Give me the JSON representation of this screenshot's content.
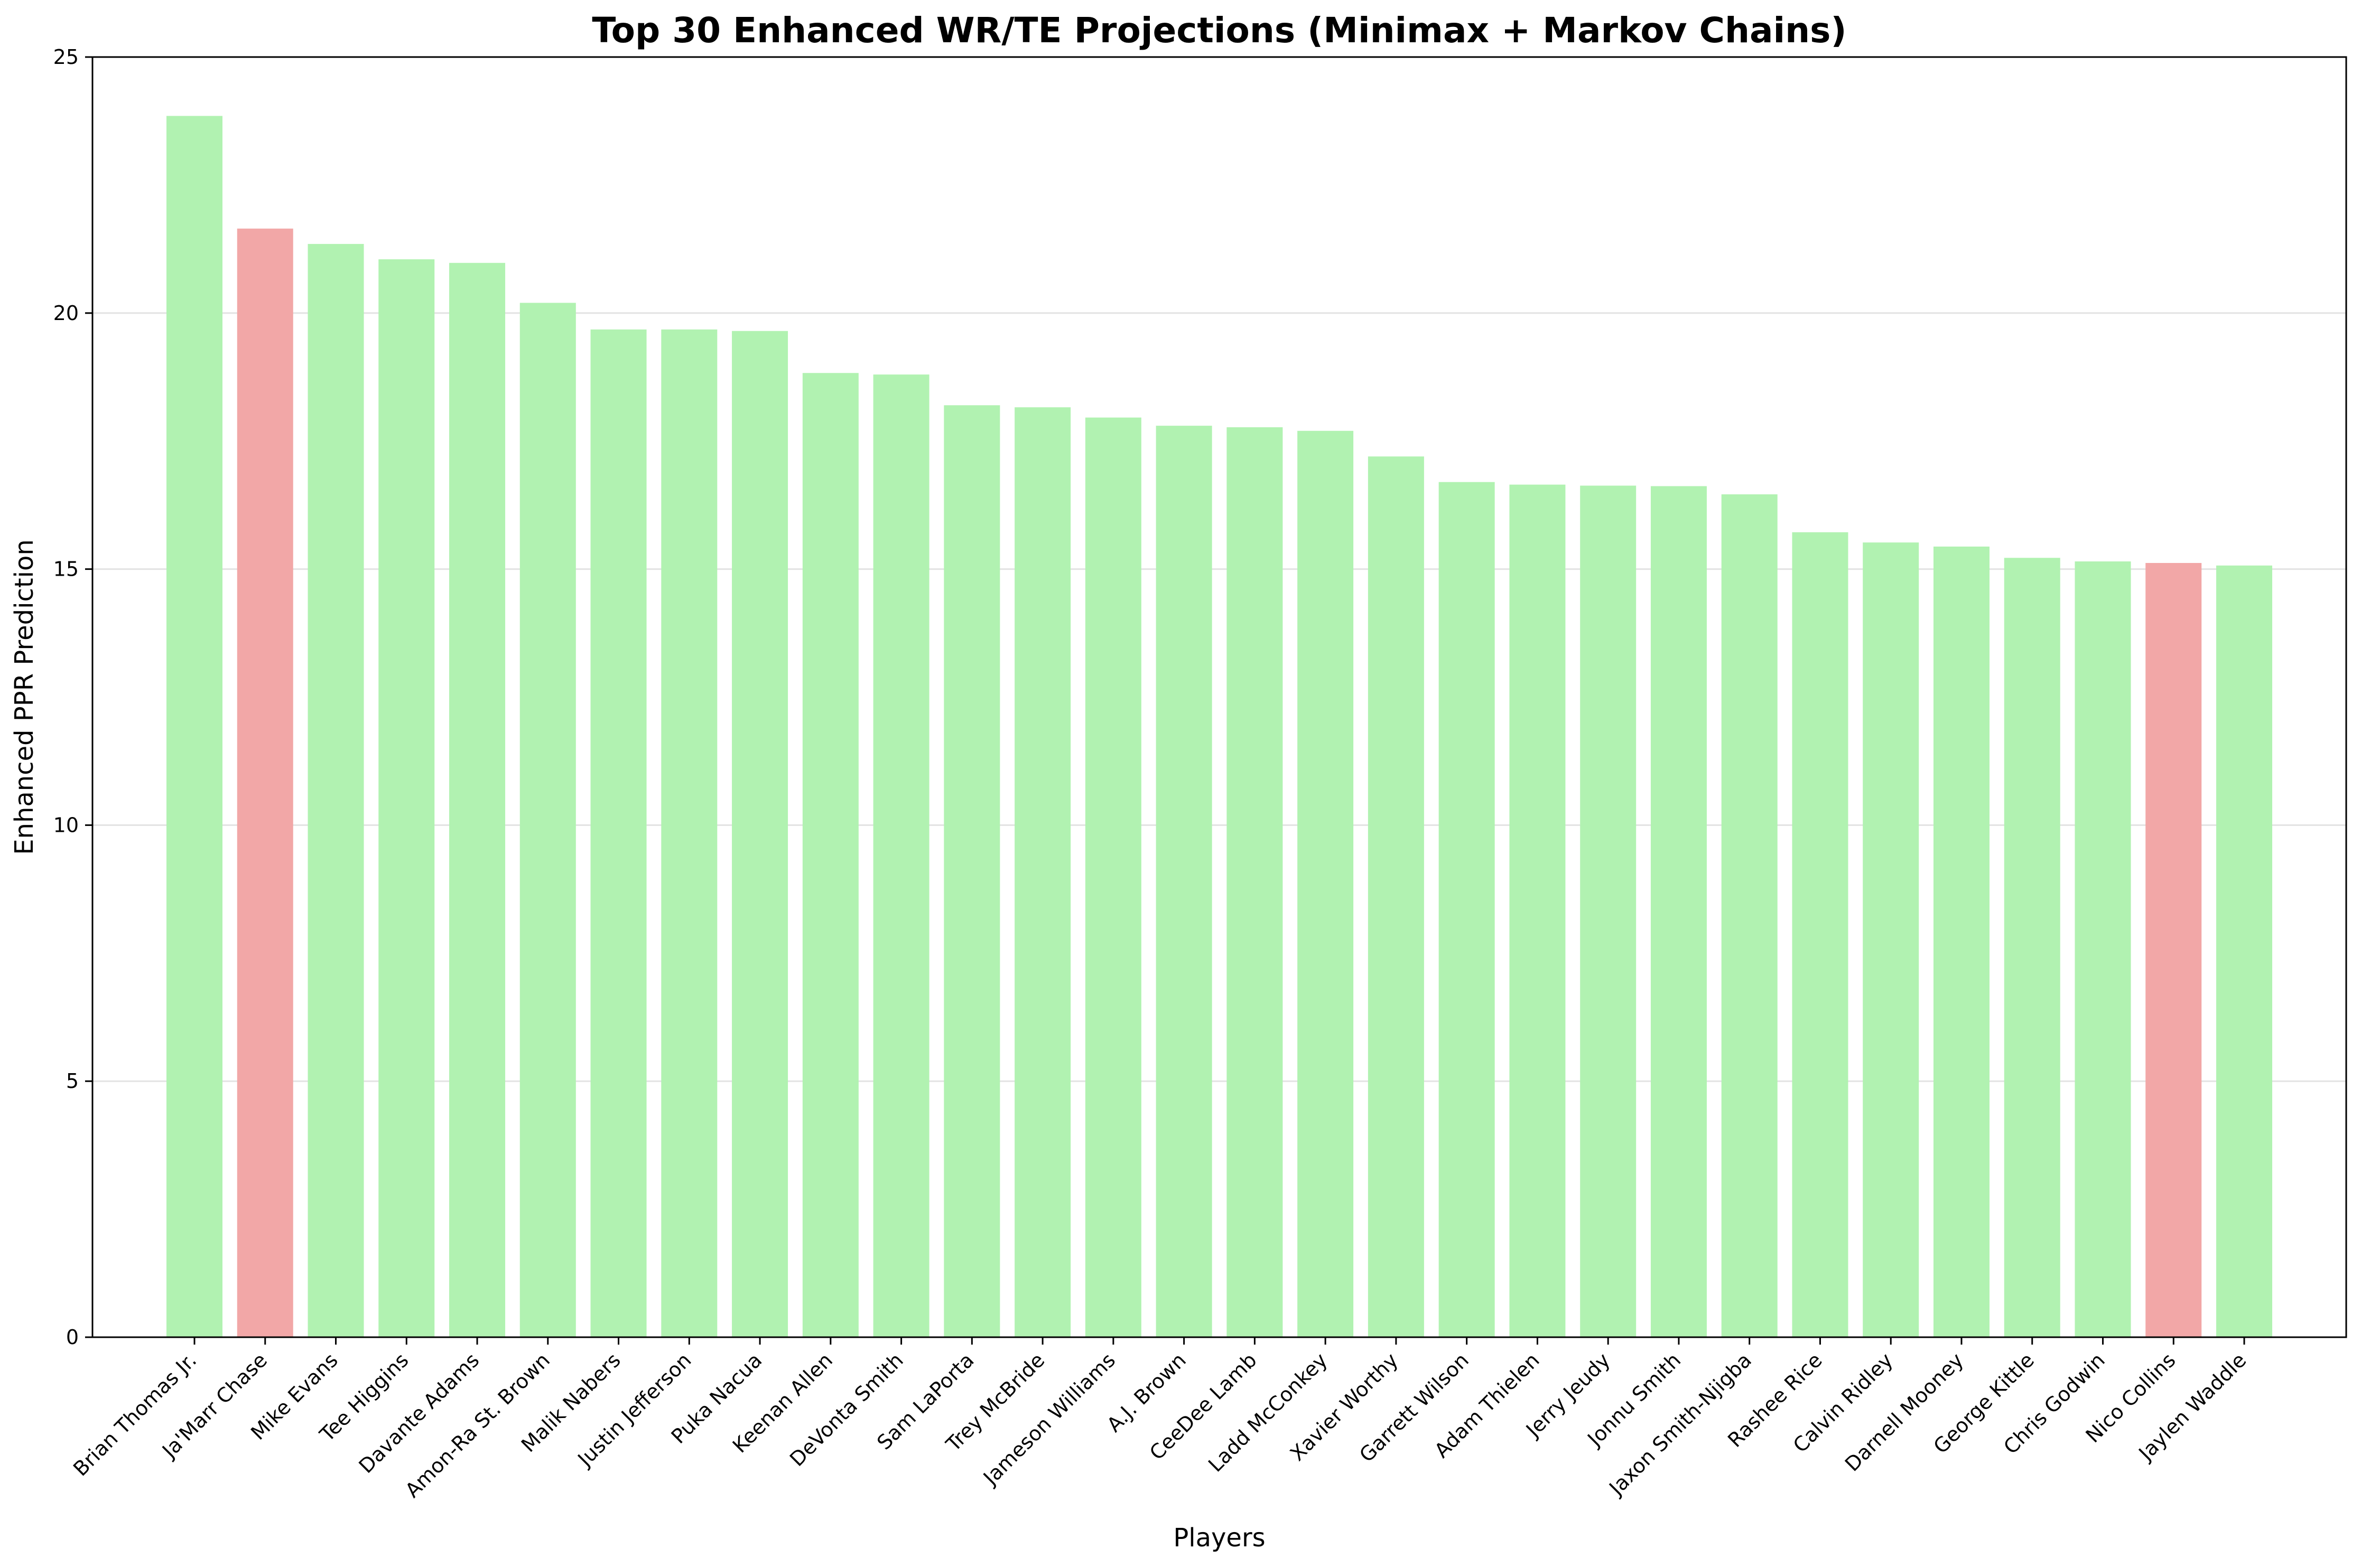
{
  "chart_data": {
    "type": "bar",
    "title": "Top 30 Enhanced WR/TE Projections (Minimax + Markov Chains)",
    "xlabel": "Players",
    "ylabel": "Enhanced PPR Prediction",
    "ylim": [
      0,
      25
    ],
    "yticks": [
      0,
      5,
      10,
      15,
      20,
      25
    ],
    "grid": "horizontal",
    "colors": {
      "default": "#b1f2b1",
      "highlight": "#f2a7a7"
    },
    "categories": [
      "Brian Thomas Jr.",
      "Ja'Marr Chase",
      "Mike Evans",
      "Tee Higgins",
      "Davante Adams",
      "Amon-Ra St. Brown",
      "Malik Nabers",
      "Justin Jefferson",
      "Puka Nacua",
      "Keenan Allen",
      "DeVonta Smith",
      "Sam LaPorta",
      "Trey McBride",
      "Jameson Williams",
      "A.J. Brown",
      "CeeDee Lamb",
      "Ladd McConkey",
      "Xavier Worthy",
      "Garrett Wilson",
      "Adam Thielen",
      "Jerry Jeudy",
      "Jonnu Smith",
      "Jaxon Smith-Njigba",
      "Rashee Rice",
      "Calvin Ridley",
      "Darnell Mooney",
      "George Kittle",
      "Chris Godwin",
      "Nico Collins",
      "Jaylen Waddle"
    ],
    "values": [
      23.85,
      21.65,
      21.35,
      21.05,
      20.98,
      20.2,
      19.68,
      19.68,
      19.65,
      18.83,
      18.8,
      18.2,
      18.16,
      17.96,
      17.8,
      17.77,
      17.7,
      17.2,
      16.7,
      16.65,
      16.63,
      16.62,
      16.46,
      15.72,
      15.52,
      15.44,
      15.22,
      15.15,
      15.12,
      15.07
    ],
    "highlighted": [
      false,
      true,
      false,
      false,
      false,
      false,
      false,
      false,
      false,
      false,
      false,
      false,
      false,
      false,
      false,
      false,
      false,
      false,
      false,
      false,
      false,
      false,
      false,
      false,
      false,
      false,
      false,
      false,
      true,
      false
    ]
  }
}
